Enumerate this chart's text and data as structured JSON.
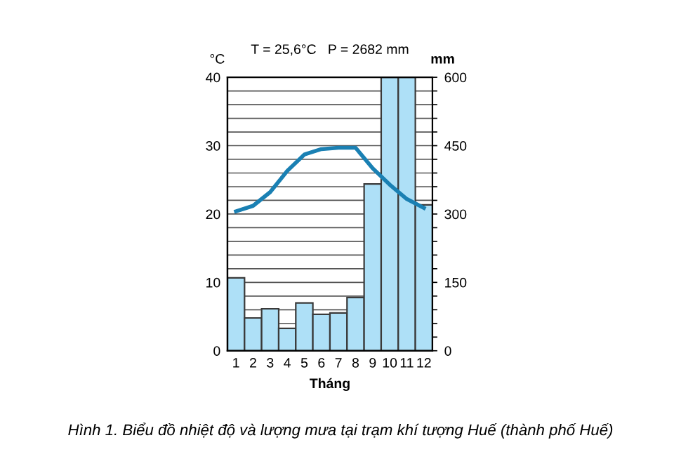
{
  "chart_data": {
    "type": "bar",
    "title": "T = 25,6°C   P = 2682 mm",
    "xlabel": "Tháng",
    "ylabel": "°C",
    "y2label": "mm",
    "categories": [
      "1",
      "2",
      "3",
      "4",
      "5",
      "6",
      "7",
      "8",
      "9",
      "10",
      "11",
      "12"
    ],
    "series": [
      {
        "axis": "y2",
        "color": "#aee0f7",
        "values": [
          160,
          72,
          92,
          49,
          105,
          80,
          83,
          117,
          366,
          600,
          600,
          320
        ]
      },
      {
        "type": "line",
        "axis": "y",
        "color": "#1a80b3",
        "values": [
          20.4,
          21.2,
          23.2,
          26.3,
          28.7,
          29.5,
          29.7,
          29.7,
          26.7,
          24.3,
          22.2,
          20.9
        ]
      }
    ],
    "ylim": [
      0,
      40
    ],
    "yticks": [
      0,
      10,
      20,
      30,
      40
    ],
    "y2lim": [
      0,
      600
    ],
    "y2ticks": [
      0,
      {
        "value": 30,
        "label": null
      },
      {
        "value": 60,
        "label": null
      },
      {
        "value": 90,
        "label": null
      },
      {
        "value": 120,
        "label": null
      },
      150,
      {
        "value": 180,
        "label": null
      },
      {
        "value": 210,
        "label": null
      },
      {
        "value": 240,
        "label": null
      },
      {
        "value": 270,
        "label": null
      },
      300,
      {
        "value": 330,
        "label": null
      },
      {
        "value": 360,
        "label": null
      },
      {
        "value": 390,
        "label": null
      },
      {
        "value": 420,
        "label": null
      },
      450,
      {
        "value": 480,
        "label": null
      },
      {
        "value": 510,
        "label": null
      },
      {
        "value": 540,
        "label": null
      },
      {
        "value": 570,
        "label": null
      },
      600
    ],
    "grid": "y2",
    "marker": "none",
    "line_style": "solid",
    "annotations": [
      "Hình 1. Biểu đồ nhiệt độ và lượng mưa tại trạm khí tượng Huế (thành phố Huế)"
    ]
  }
}
